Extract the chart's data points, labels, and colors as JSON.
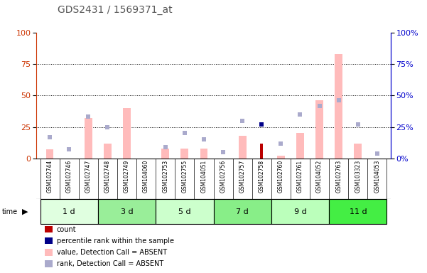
{
  "title": "GDS2431 / 1569371_at",
  "samples": [
    "GSM102744",
    "GSM102746",
    "GSM102747",
    "GSM102748",
    "GSM102749",
    "GSM104060",
    "GSM102753",
    "GSM102755",
    "GSM104051",
    "GSM102756",
    "GSM102757",
    "GSM102758",
    "GSM102760",
    "GSM102761",
    "GSM104052",
    "GSM102763",
    "GSM103323",
    "GSM104053"
  ],
  "groups": [
    {
      "label": "1 d",
      "indices": [
        0,
        1,
        2
      ],
      "color": "#e0ffe0"
    },
    {
      "label": "3 d",
      "indices": [
        3,
        4,
        5
      ],
      "color": "#99ee99"
    },
    {
      "label": "5 d",
      "indices": [
        6,
        7,
        8
      ],
      "color": "#ccffcc"
    },
    {
      "label": "7 d",
      "indices": [
        9,
        10,
        11
      ],
      "color": "#88ee88"
    },
    {
      "label": "9 d",
      "indices": [
        12,
        13,
        14
      ],
      "color": "#bbffbb"
    },
    {
      "label": "11 d",
      "indices": [
        15,
        16,
        17
      ],
      "color": "#44ee44"
    }
  ],
  "pink_bars": [
    7,
    0,
    32,
    12,
    40,
    0,
    8,
    8,
    8,
    0,
    18,
    0,
    2,
    20,
    46,
    83,
    12,
    0
  ],
  "blue_squares": [
    17,
    7,
    33,
    25,
    0,
    0,
    9,
    20,
    15,
    5,
    30,
    0,
    12,
    35,
    42,
    46,
    27,
    4
  ],
  "red_bars": [
    0,
    0,
    0,
    0,
    0,
    0,
    0,
    0,
    0,
    0,
    0,
    12,
    0,
    0,
    0,
    0,
    0,
    0
  ],
  "dark_blue_squares": [
    0,
    0,
    0,
    0,
    0,
    0,
    0,
    0,
    0,
    0,
    0,
    27,
    0,
    0,
    0,
    0,
    0,
    0
  ],
  "ylim": [
    0,
    100
  ],
  "left_ticks": [
    0,
    25,
    50,
    75,
    100
  ],
  "right_ticks": [
    0,
    25,
    50,
    75,
    100
  ],
  "left_axis_color": "#cc3300",
  "right_axis_color": "#0000cc",
  "title_color": "#555555",
  "bg_color": "#ffffff",
  "label_bg": "#dddddd",
  "pink_color": "#ffbbbb",
  "red_color": "#bb0000",
  "blue_sq_color": "#aaaacc",
  "dark_blue_color": "#000088",
  "legend_items": [
    {
      "label": "count",
      "color": "#bb0000"
    },
    {
      "label": "percentile rank within the sample",
      "color": "#000088"
    },
    {
      "label": "value, Detection Call = ABSENT",
      "color": "#ffbbbb"
    },
    {
      "label": "rank, Detection Call = ABSENT",
      "color": "#aaaacc"
    }
  ]
}
